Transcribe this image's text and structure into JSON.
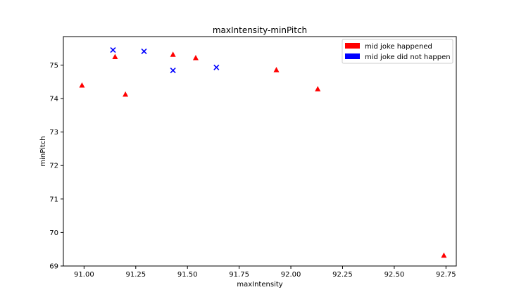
{
  "chart_data": {
    "type": "scatter",
    "title": "maxIntensity-minPitch",
    "xlabel": "maxIntensity",
    "ylabel": "minPitch",
    "xlim": [
      90.9,
      92.8
    ],
    "ylim": [
      69.0,
      75.85
    ],
    "xticks": [
      91.0,
      91.25,
      91.5,
      91.75,
      92.0,
      92.25,
      92.5,
      92.75
    ],
    "xtick_labels": [
      "91.00",
      "91.25",
      "91.50",
      "91.75",
      "92.00",
      "92.25",
      "92.50",
      "92.75"
    ],
    "yticks": [
      69,
      70,
      71,
      72,
      73,
      74,
      75
    ],
    "ytick_labels": [
      "69",
      "70",
      "71",
      "72",
      "73",
      "74",
      "75"
    ],
    "grid": false,
    "legend_position": "top-right",
    "series": [
      {
        "name": "mid joke happened",
        "color": "#ff0000",
        "marker": "triangle",
        "points": [
          {
            "x": 90.99,
            "y": 74.39
          },
          {
            "x": 91.15,
            "y": 75.24
          },
          {
            "x": 91.2,
            "y": 74.12
          },
          {
            "x": 91.43,
            "y": 75.31
          },
          {
            "x": 91.54,
            "y": 75.21
          },
          {
            "x": 91.93,
            "y": 74.85
          },
          {
            "x": 92.13,
            "y": 74.28
          },
          {
            "x": 92.74,
            "y": 69.31
          }
        ]
      },
      {
        "name": "mid joke did not happen",
        "color": "#0000ff",
        "marker": "x",
        "points": [
          {
            "x": 91.14,
            "y": 75.45
          },
          {
            "x": 91.29,
            "y": 75.41
          },
          {
            "x": 91.43,
            "y": 74.84
          },
          {
            "x": 91.64,
            "y": 74.93
          }
        ]
      }
    ]
  }
}
